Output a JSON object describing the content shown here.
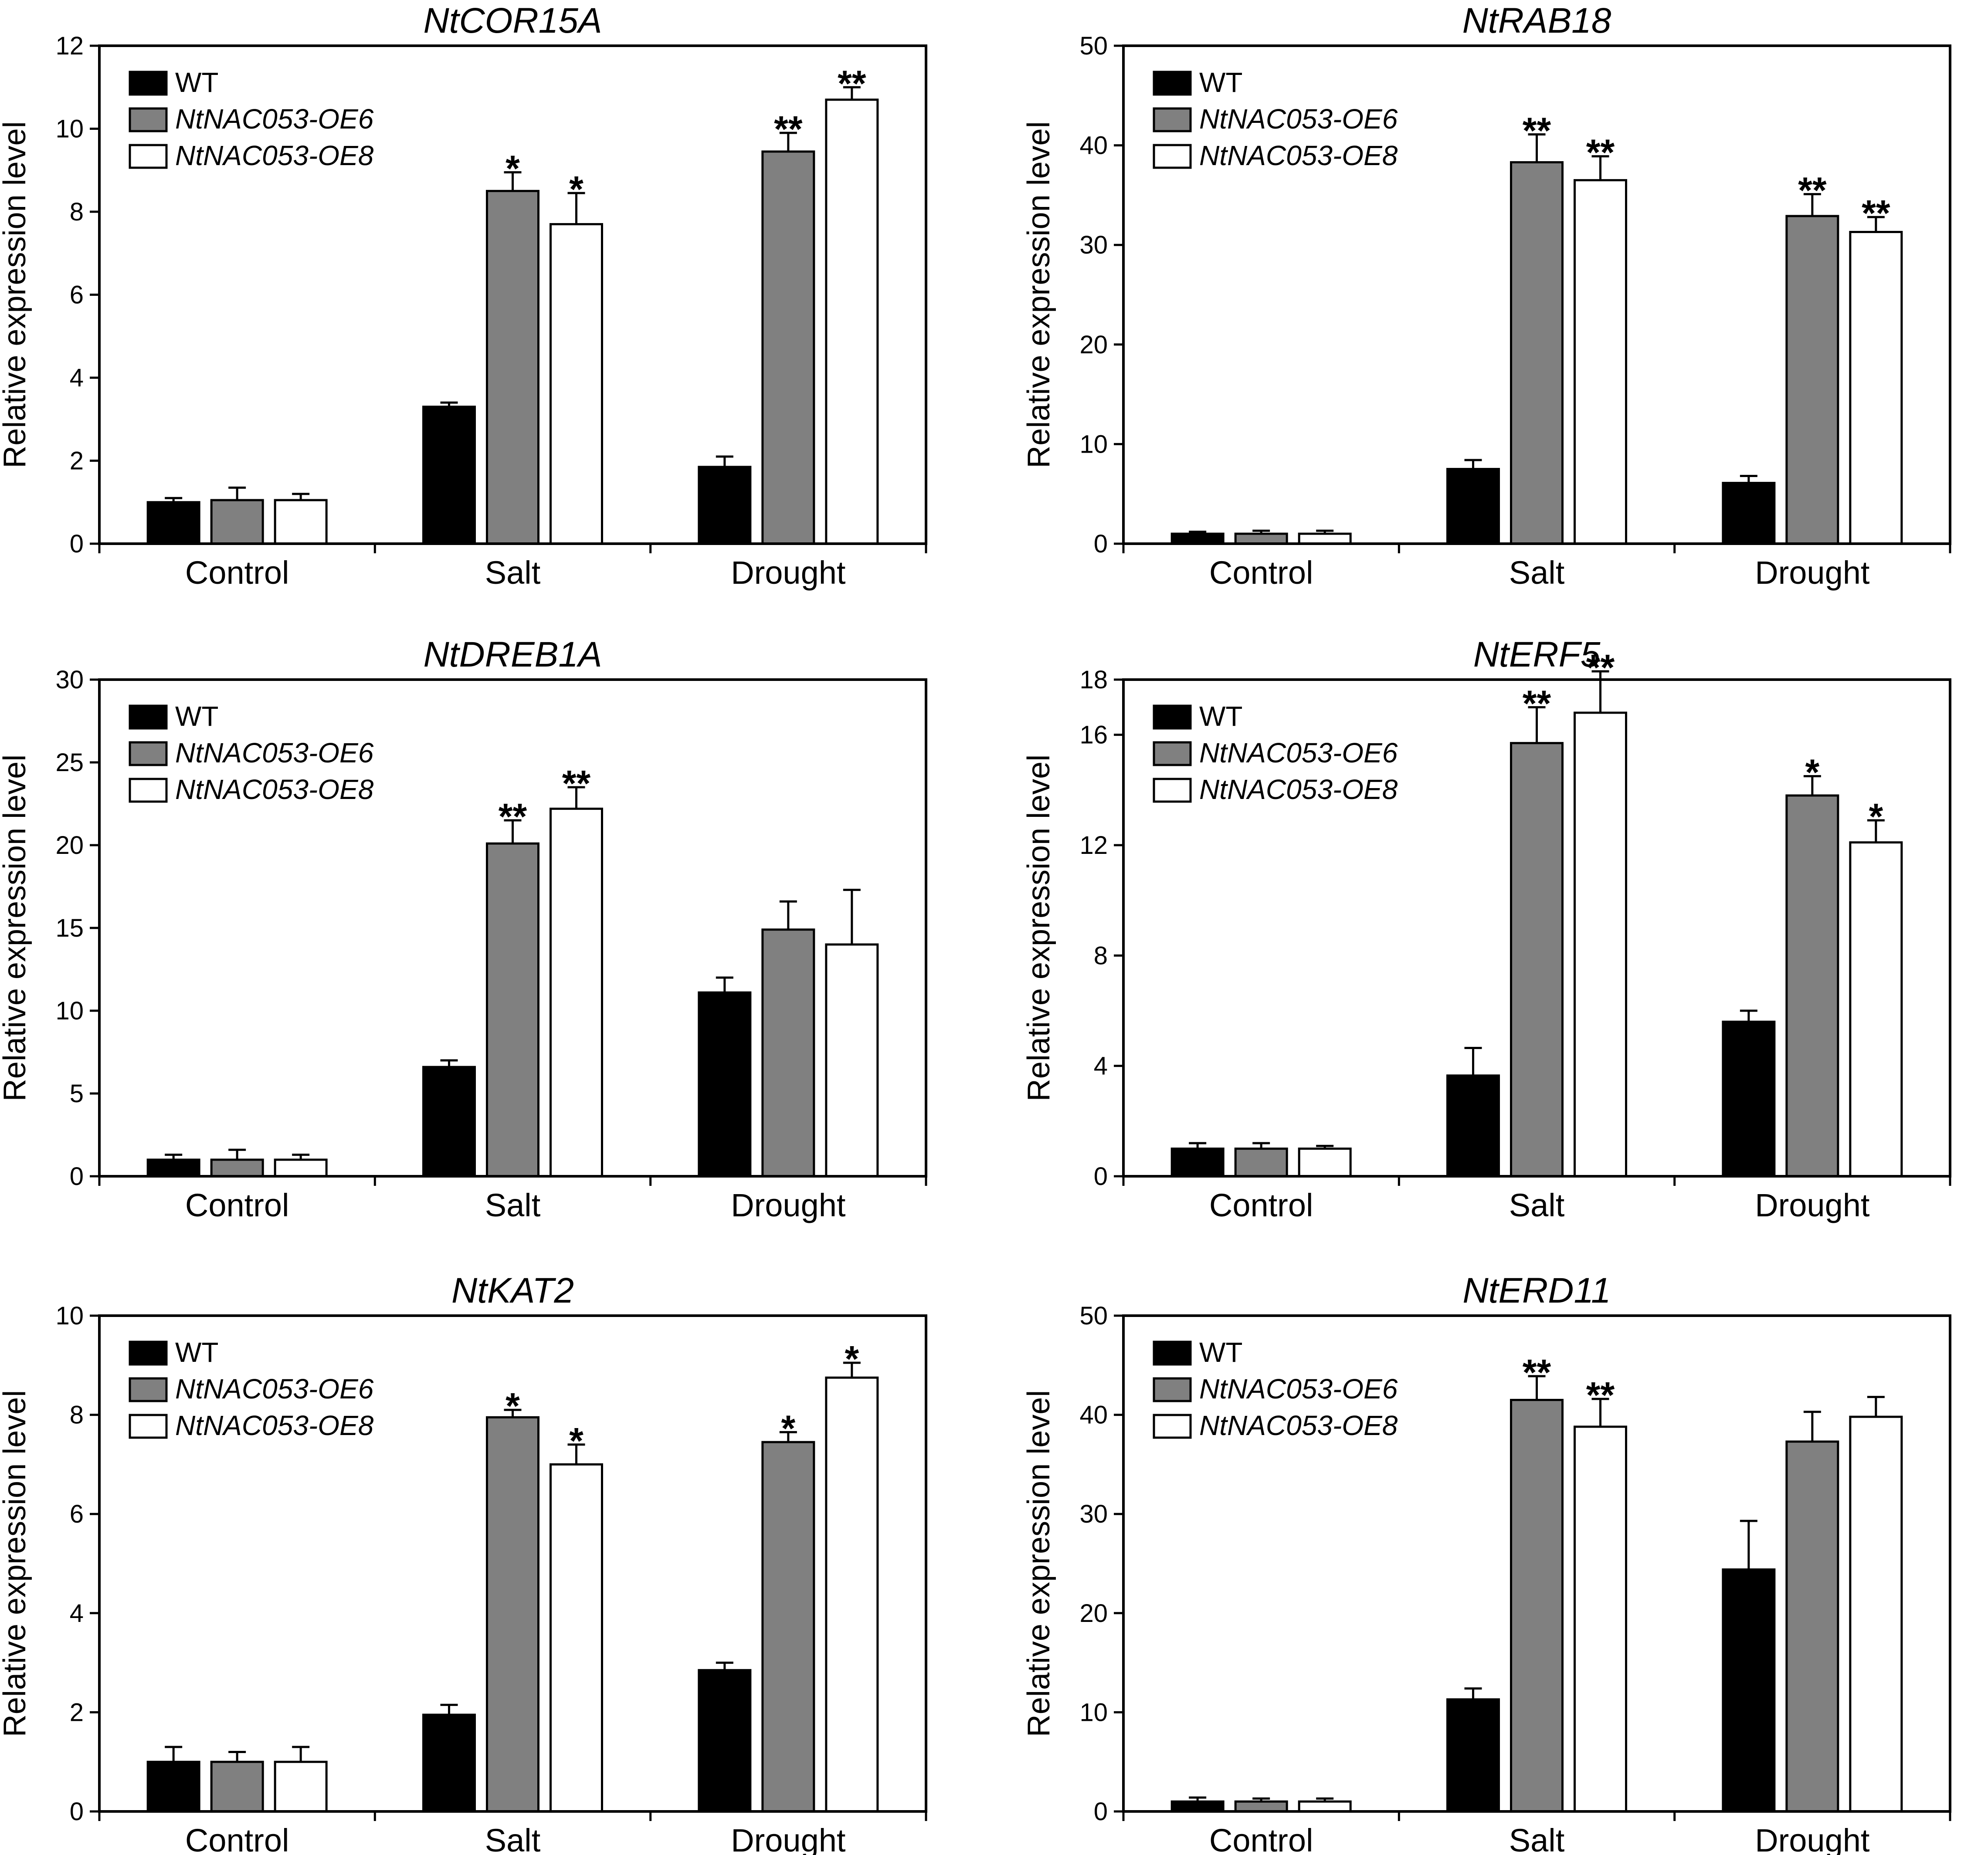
{
  "legend": {
    "series": [
      {
        "name": "WT",
        "color": "#000000",
        "italic": false
      },
      {
        "name": "NtNAC053-OE6",
        "color": "#808080",
        "italic": true
      },
      {
        "name": "NtNAC053-OE8",
        "color": "#ffffff",
        "italic": true
      }
    ]
  },
  "chart_data": [
    {
      "type": "bar",
      "title": "NtCOR15A",
      "ylabel": "Relative expression level",
      "categories": [
        "Control",
        "Salt",
        "Drought"
      ],
      "ylim": [
        0,
        12
      ],
      "yticks": [
        0,
        2,
        4,
        6,
        8,
        10,
        12
      ],
      "series": [
        {
          "name": "WT",
          "values": [
            1.0,
            3.3,
            1.85
          ],
          "errors": [
            0.1,
            0.1,
            0.25
          ],
          "sig": [
            "",
            "",
            ""
          ]
        },
        {
          "name": "NtNAC053-OE6",
          "values": [
            1.05,
            8.5,
            9.45
          ],
          "errors": [
            0.3,
            0.45,
            0.45
          ],
          "sig": [
            "",
            "*",
            "**"
          ]
        },
        {
          "name": "NtNAC053-OE8",
          "values": [
            1.05,
            7.7,
            10.7
          ],
          "errors": [
            0.15,
            0.75,
            0.3
          ],
          "sig": [
            "",
            "*",
            "**"
          ]
        }
      ]
    },
    {
      "type": "bar",
      "title": "NtRAB18",
      "ylabel": "Relative expression level",
      "categories": [
        "Control",
        "Salt",
        "Drought"
      ],
      "ylim": [
        0,
        50
      ],
      "yticks": [
        0,
        10,
        20,
        30,
        40,
        50
      ],
      "series": [
        {
          "name": "WT",
          "values": [
            1.0,
            7.5,
            6.1
          ],
          "errors": [
            0.2,
            0.9,
            0.7
          ],
          "sig": [
            "",
            "",
            ""
          ]
        },
        {
          "name": "NtNAC053-OE6",
          "values": [
            1.0,
            38.3,
            32.9
          ],
          "errors": [
            0.3,
            2.8,
            2.2
          ],
          "sig": [
            "",
            "**",
            "**"
          ]
        },
        {
          "name": "NtNAC053-OE8",
          "values": [
            1.0,
            36.5,
            31.3
          ],
          "errors": [
            0.3,
            2.4,
            1.5
          ],
          "sig": [
            "",
            "**",
            "**"
          ]
        }
      ]
    },
    {
      "type": "bar",
      "title": "NtDREB1A",
      "ylabel": "Relative expression level",
      "categories": [
        "Control",
        "Salt",
        "Drought"
      ],
      "ylim": [
        0,
        30
      ],
      "yticks": [
        0,
        5,
        10,
        15,
        20,
        25,
        30
      ],
      "series": [
        {
          "name": "WT",
          "values": [
            1.0,
            6.6,
            11.1
          ],
          "errors": [
            0.3,
            0.4,
            0.9
          ],
          "sig": [
            "",
            "",
            ""
          ]
        },
        {
          "name": "NtNAC053-OE6",
          "values": [
            1.0,
            20.1,
            14.9
          ],
          "errors": [
            0.6,
            1.4,
            1.7
          ],
          "sig": [
            "",
            "**",
            ""
          ]
        },
        {
          "name": "NtNAC053-OE8",
          "values": [
            1.0,
            22.2,
            14.0
          ],
          "errors": [
            0.3,
            1.3,
            3.3
          ],
          "sig": [
            "",
            "**",
            ""
          ]
        }
      ]
    },
    {
      "type": "bar",
      "title": "NtERF5",
      "ylabel": "Relative expression level",
      "categories": [
        "Control",
        "Salt",
        "Drought"
      ],
      "ylim": [
        0,
        18
      ],
      "yticks": [
        0,
        4,
        8,
        12,
        16,
        18
      ],
      "series": [
        {
          "name": "WT",
          "values": [
            1.0,
            3.65,
            5.6
          ],
          "errors": [
            0.2,
            1.0,
            0.4
          ],
          "sig": [
            "",
            "",
            ""
          ]
        },
        {
          "name": "NtNAC053-OE6",
          "values": [
            1.0,
            15.7,
            13.8
          ],
          "errors": [
            0.2,
            1.3,
            0.7
          ],
          "sig": [
            "",
            "**",
            "*"
          ]
        },
        {
          "name": "NtNAC053-OE8",
          "values": [
            1.0,
            16.8,
            12.1
          ],
          "errors": [
            0.1,
            1.5,
            0.8
          ],
          "sig": [
            "",
            "**",
            "*"
          ]
        }
      ]
    },
    {
      "type": "bar",
      "title": "NtKAT2",
      "ylabel": "Relative expression level",
      "categories": [
        "Control",
        "Salt",
        "Drought"
      ],
      "ylim": [
        0,
        10
      ],
      "yticks": [
        0,
        2,
        4,
        6,
        8,
        10
      ],
      "series": [
        {
          "name": "WT",
          "values": [
            1.0,
            1.95,
            2.85
          ],
          "errors": [
            0.3,
            0.2,
            0.15
          ],
          "sig": [
            "",
            "",
            ""
          ]
        },
        {
          "name": "NtNAC053-OE6",
          "values": [
            1.0,
            7.95,
            7.45
          ],
          "errors": [
            0.2,
            0.15,
            0.2
          ],
          "sig": [
            "",
            "*",
            "*"
          ]
        },
        {
          "name": "NtNAC053-OE8",
          "values": [
            1.0,
            7.0,
            8.75
          ],
          "errors": [
            0.3,
            0.4,
            0.3
          ],
          "sig": [
            "",
            "*",
            "*"
          ]
        }
      ]
    },
    {
      "type": "bar",
      "title": "NtERD11",
      "ylabel": "Relative expression level",
      "categories": [
        "Control",
        "Salt",
        "Drought"
      ],
      "ylim": [
        0,
        50
      ],
      "yticks": [
        0,
        10,
        20,
        30,
        40,
        50
      ],
      "series": [
        {
          "name": "WT",
          "values": [
            1.0,
            11.3,
            24.4
          ],
          "errors": [
            0.4,
            1.1,
            4.9
          ],
          "sig": [
            "",
            "",
            ""
          ]
        },
        {
          "name": "NtNAC053-OE6",
          "values": [
            1.0,
            41.5,
            37.3
          ],
          "errors": [
            0.3,
            2.4,
            3.0
          ],
          "sig": [
            "",
            "**",
            ""
          ]
        },
        {
          "name": "NtNAC053-OE8",
          "values": [
            1.0,
            38.8,
            39.8
          ],
          "errors": [
            0.3,
            2.8,
            2.0
          ],
          "sig": [
            "",
            "**",
            ""
          ]
        }
      ]
    }
  ]
}
